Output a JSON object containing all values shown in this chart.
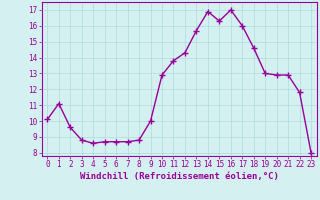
{
  "x": [
    0,
    1,
    2,
    3,
    4,
    5,
    6,
    7,
    8,
    9,
    10,
    11,
    12,
    13,
    14,
    15,
    16,
    17,
    18,
    19,
    20,
    21,
    22,
    23
  ],
  "y": [
    10.1,
    11.1,
    9.6,
    8.8,
    8.6,
    8.7,
    8.7,
    8.7,
    8.8,
    10.0,
    12.9,
    13.8,
    14.3,
    15.7,
    16.9,
    16.3,
    17.0,
    16.0,
    14.6,
    13.0,
    12.9,
    12.9,
    11.8,
    8.0
  ],
  "line_color": "#990099",
  "marker": "+",
  "markersize": 4,
  "linewidth": 1.0,
  "xlabel": "Windchill (Refroidissement éolien,°C)",
  "xlabel_fontsize": 6.5,
  "bg_color": "#d4f0f0",
  "grid_color": "#aadddd",
  "ylim": [
    7.8,
    17.5
  ],
  "xlim": [
    -0.5,
    23.5
  ],
  "yticks": [
    8,
    9,
    10,
    11,
    12,
    13,
    14,
    15,
    16,
    17
  ],
  "xticks": [
    0,
    1,
    2,
    3,
    4,
    5,
    6,
    7,
    8,
    9,
    10,
    11,
    12,
    13,
    14,
    15,
    16,
    17,
    18,
    19,
    20,
    21,
    22,
    23
  ],
  "tick_fontsize": 5.5,
  "spine_color": "#990099"
}
